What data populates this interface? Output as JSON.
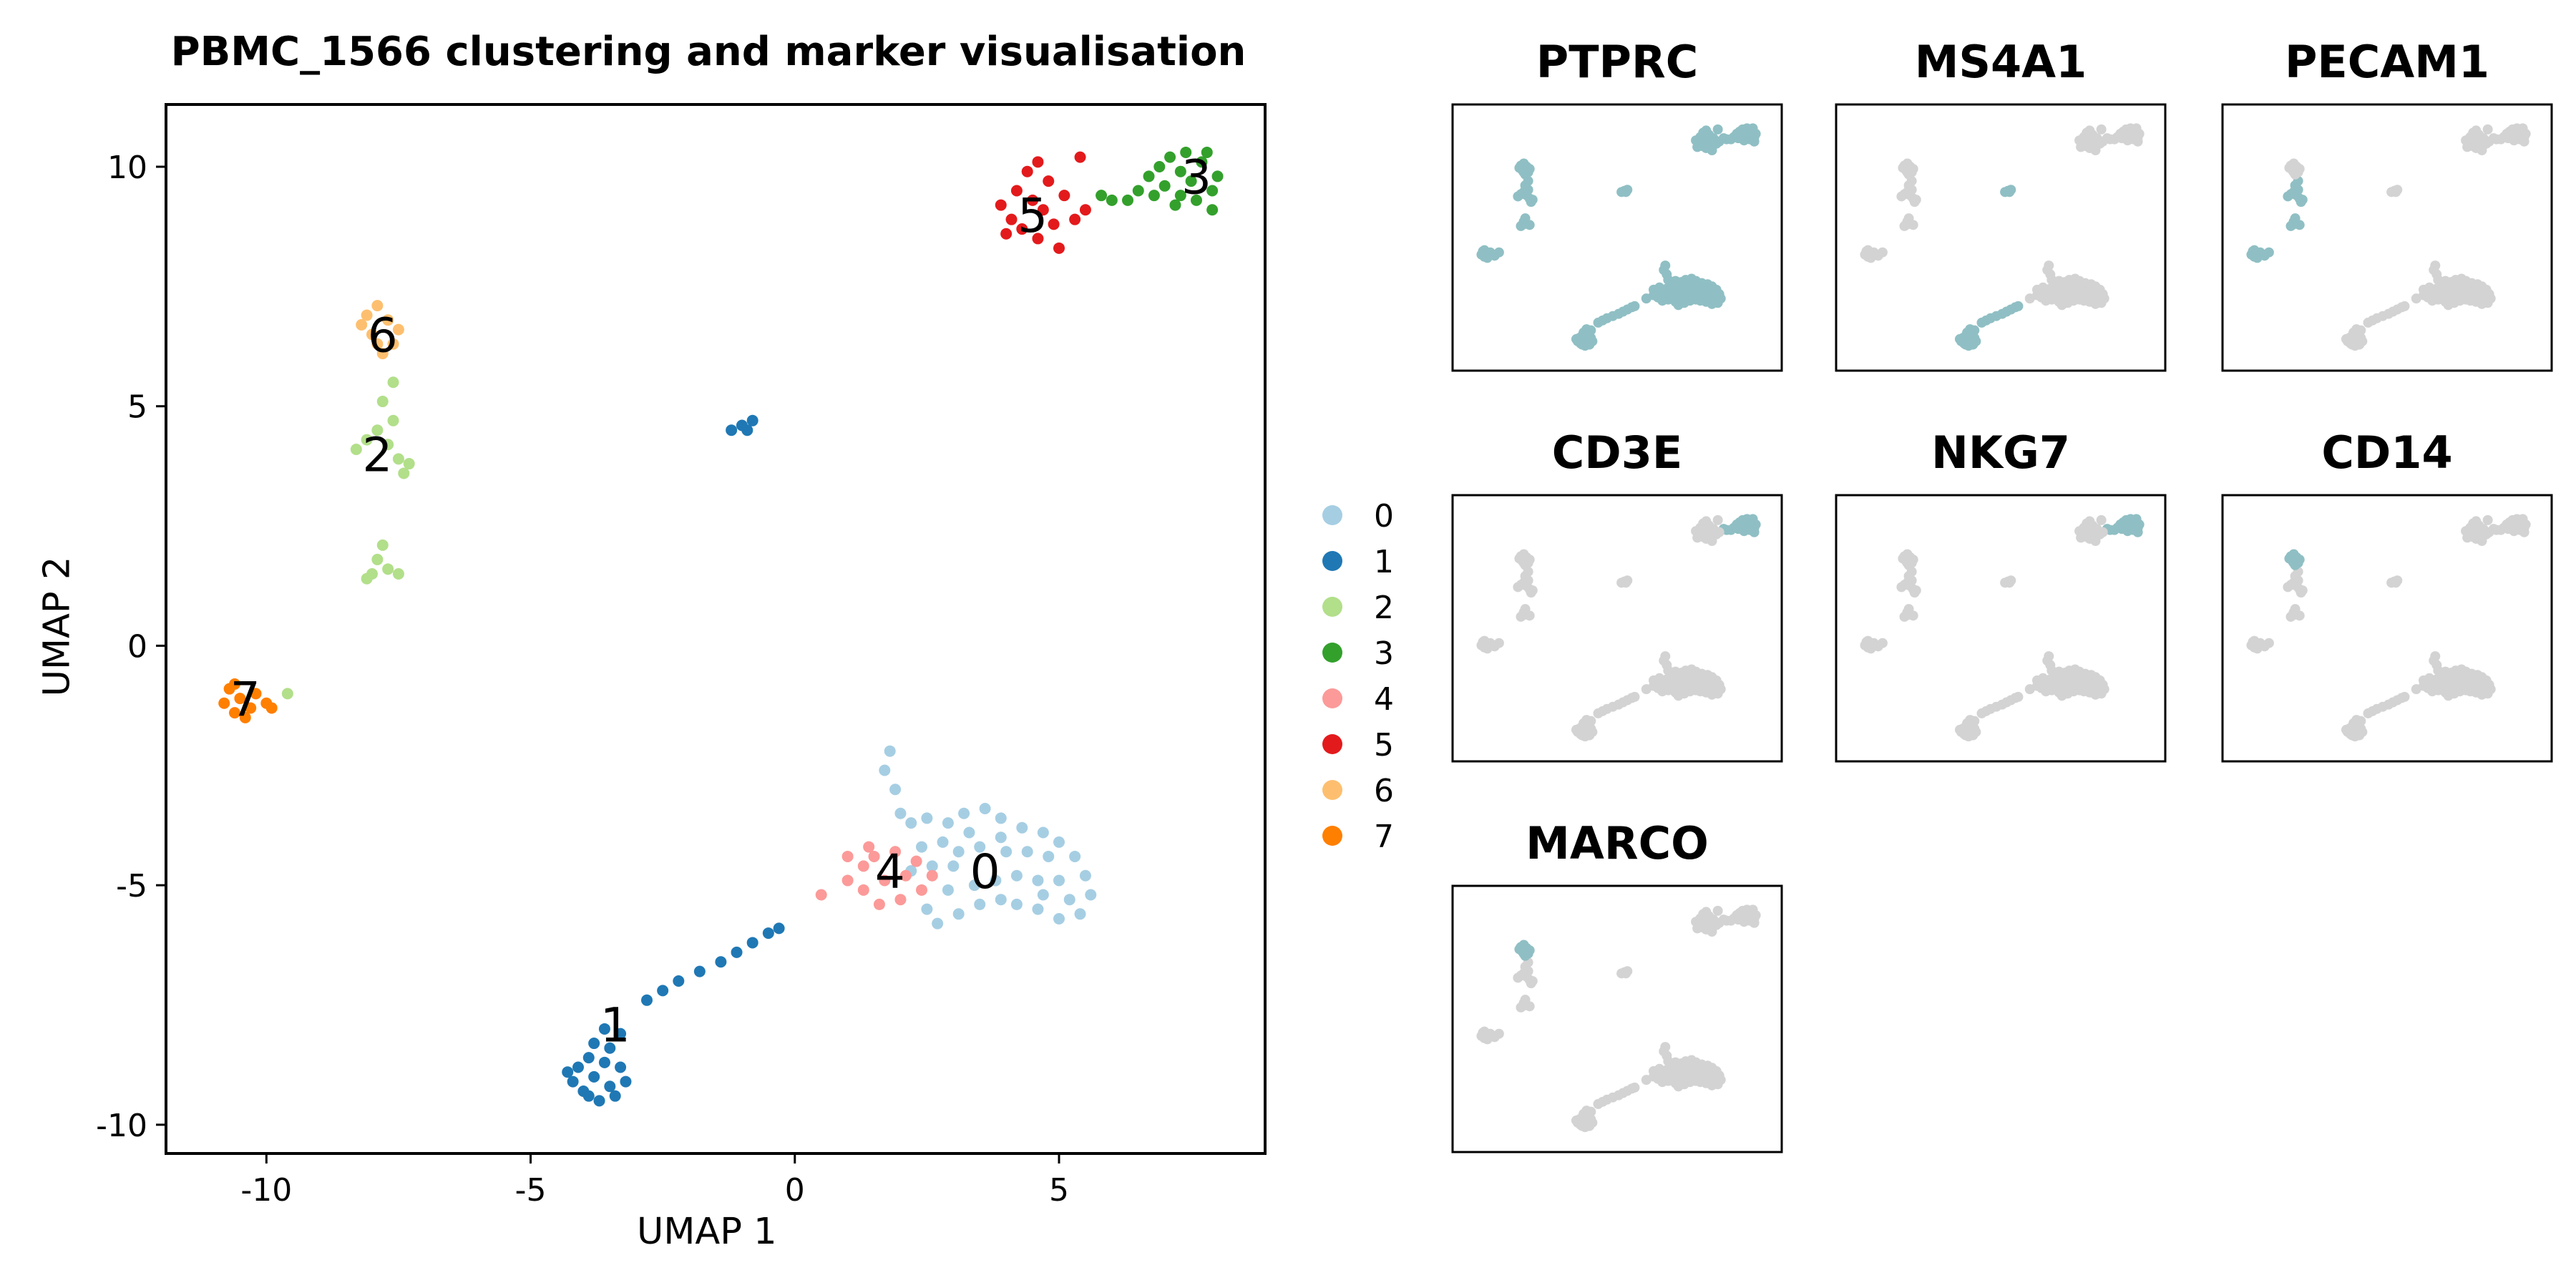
{
  "title": "PBMC_1566 clustering and marker visualisation",
  "chart_data": [
    {
      "type": "scatter",
      "title": "PBMC_1566 clustering and marker visualisation",
      "xlabel": "UMAP 1",
      "ylabel": "UMAP 2",
      "xlim": [
        -11.9,
        8.9
      ],
      "ylim": [
        -10.6,
        11.3
      ],
      "xticks": [
        {
          "v": -10,
          "label": "-10"
        },
        {
          "v": -5,
          "label": "-5"
        },
        {
          "v": 0,
          "label": "0"
        },
        {
          "v": 5,
          "label": "5"
        }
      ],
      "yticks": [
        {
          "v": -10,
          "label": "-10"
        },
        {
          "v": -5,
          "label": "-5"
        },
        {
          "v": 0,
          "label": "0"
        },
        {
          "v": 5,
          "label": "5"
        },
        {
          "v": 10,
          "label": "10"
        }
      ],
      "legend_position": "right",
      "series": [
        {
          "name": "0",
          "color": "#a6cee3",
          "label_at": [
            3.6,
            -4.7
          ],
          "points": [
            [
              1.8,
              -2.2
            ],
            [
              1.7,
              -2.6
            ],
            [
              1.9,
              -3.0
            ],
            [
              2.0,
              -3.5
            ],
            [
              2.2,
              -3.7
            ],
            [
              2.5,
              -3.6
            ],
            [
              2.9,
              -3.7
            ],
            [
              3.2,
              -3.5
            ],
            [
              3.6,
              -3.4
            ],
            [
              3.9,
              -3.6
            ],
            [
              4.3,
              -3.8
            ],
            [
              4.7,
              -3.9
            ],
            [
              5.0,
              -4.1
            ],
            [
              5.3,
              -4.4
            ],
            [
              5.5,
              -4.8
            ],
            [
              5.6,
              -5.2
            ],
            [
              5.4,
              -5.6
            ],
            [
              5.0,
              -5.7
            ],
            [
              4.6,
              -5.5
            ],
            [
              4.2,
              -5.4
            ],
            [
              3.9,
              -5.3
            ],
            [
              3.5,
              -5.4
            ],
            [
              3.1,
              -5.6
            ],
            [
              2.7,
              -5.8
            ],
            [
              2.5,
              -5.5
            ],
            [
              2.9,
              -5.1
            ],
            [
              3.4,
              -5.0
            ],
            [
              3.8,
              -4.9
            ],
            [
              4.2,
              -4.8
            ],
            [
              4.6,
              -4.9
            ],
            [
              5.0,
              -4.9
            ],
            [
              4.8,
              -4.4
            ],
            [
              4.4,
              -4.3
            ],
            [
              4.0,
              -4.3
            ],
            [
              3.5,
              -4.2
            ],
            [
              3.1,
              -4.3
            ],
            [
              2.8,
              -4.1
            ],
            [
              2.4,
              -4.2
            ],
            [
              2.2,
              -4.7
            ],
            [
              2.6,
              -4.6
            ],
            [
              3.0,
              -4.6
            ],
            [
              3.9,
              -4.0
            ],
            [
              4.7,
              -5.2
            ],
            [
              5.2,
              -5.3
            ],
            [
              3.3,
              -3.9
            ]
          ]
        },
        {
          "name": "1",
          "color": "#1f78b4",
          "label_at": [
            -3.4,
            -7.9
          ],
          "points": [
            [
              -3.9,
              -8.6
            ],
            [
              -4.1,
              -8.8
            ],
            [
              -4.2,
              -9.1
            ],
            [
              -4.0,
              -9.3
            ],
            [
              -3.7,
              -9.5
            ],
            [
              -3.4,
              -9.4
            ],
            [
              -3.2,
              -9.1
            ],
            [
              -3.3,
              -8.8
            ],
            [
              -3.6,
              -8.7
            ],
            [
              -3.8,
              -9.0
            ],
            [
              -3.5,
              -9.2
            ],
            [
              -3.9,
              -9.4
            ],
            [
              -4.3,
              -8.9
            ],
            [
              -3.5,
              -8.4
            ],
            [
              -3.3,
              -8.1
            ],
            [
              -3.6,
              -8.0
            ],
            [
              -3.8,
              -8.3
            ],
            [
              -2.8,
              -7.4
            ],
            [
              -2.5,
              -7.2
            ],
            [
              -2.2,
              -7.0
            ],
            [
              -1.8,
              -6.8
            ],
            [
              -1.4,
              -6.6
            ],
            [
              -1.1,
              -6.4
            ],
            [
              -0.8,
              -6.2
            ],
            [
              -0.5,
              -6.0
            ],
            [
              -0.3,
              -5.9
            ],
            [
              -1.2,
              4.5
            ],
            [
              -1.0,
              4.6
            ],
            [
              -0.8,
              4.7
            ],
            [
              -0.9,
              4.5
            ]
          ]
        },
        {
          "name": "2",
          "color": "#b2df8a",
          "label_at": [
            -7.9,
            4.0
          ],
          "points": [
            [
              -8.3,
              4.1
            ],
            [
              -8.1,
              4.3
            ],
            [
              -7.9,
              4.5
            ],
            [
              -7.7,
              4.2
            ],
            [
              -7.6,
              4.7
            ],
            [
              -7.5,
              3.9
            ],
            [
              -7.4,
              3.6
            ],
            [
              -7.8,
              5.1
            ],
            [
              -7.6,
              5.5
            ],
            [
              -8.0,
              1.5
            ],
            [
              -7.9,
              1.8
            ],
            [
              -7.8,
              2.1
            ],
            [
              -7.7,
              1.6
            ],
            [
              -8.1,
              1.4
            ],
            [
              -7.5,
              1.5
            ],
            [
              -9.6,
              -1.0
            ],
            [
              -7.3,
              3.8
            ]
          ]
        },
        {
          "name": "3",
          "color": "#33a02c",
          "label_at": [
            7.6,
            9.8
          ],
          "points": [
            [
              6.7,
              9.8
            ],
            [
              6.9,
              10.0
            ],
            [
              7.1,
              10.2
            ],
            [
              7.3,
              9.9
            ],
            [
              7.5,
              9.7
            ],
            [
              7.7,
              10.1
            ],
            [
              7.9,
              9.5
            ],
            [
              7.6,
              9.3
            ],
            [
              7.3,
              9.4
            ],
            [
              7.0,
              9.6
            ],
            [
              6.8,
              9.4
            ],
            [
              6.5,
              9.5
            ],
            [
              6.3,
              9.3
            ],
            [
              6.0,
              9.3
            ],
            [
              5.8,
              9.4
            ],
            [
              7.8,
              10.3
            ],
            [
              8.0,
              9.8
            ],
            [
              7.2,
              9.2
            ],
            [
              7.4,
              10.3
            ],
            [
              7.9,
              9.1
            ]
          ]
        },
        {
          "name": "4",
          "color": "#fb9a99",
          "label_at": [
            1.8,
            -4.7
          ],
          "points": [
            [
              0.5,
              -5.2
            ],
            [
              1.0,
              -4.9
            ],
            [
              1.3,
              -4.6
            ],
            [
              1.5,
              -4.4
            ],
            [
              1.9,
              -4.3
            ],
            [
              2.3,
              -4.5
            ],
            [
              2.6,
              -4.8
            ],
            [
              2.4,
              -5.1
            ],
            [
              2.0,
              -5.3
            ],
            [
              1.6,
              -5.4
            ],
            [
              1.3,
              -5.1
            ],
            [
              1.7,
              -4.9
            ],
            [
              2.1,
              -4.8
            ],
            [
              1.4,
              -4.2
            ],
            [
              1.0,
              -4.4
            ]
          ]
        },
        {
          "name": "5",
          "color": "#e31a1c",
          "label_at": [
            4.5,
            9.0
          ],
          "points": [
            [
              3.9,
              9.2
            ],
            [
              4.1,
              8.9
            ],
            [
              4.3,
              8.7
            ],
            [
              4.5,
              9.3
            ],
            [
              4.7,
              9.1
            ],
            [
              4.9,
              8.8
            ],
            [
              5.1,
              9.4
            ],
            [
              5.3,
              8.9
            ],
            [
              5.5,
              9.1
            ],
            [
              4.2,
              9.5
            ],
            [
              4.0,
              8.6
            ],
            [
              4.6,
              8.5
            ],
            [
              5.0,
              8.3
            ],
            [
              4.8,
              9.7
            ],
            [
              4.4,
              9.9
            ],
            [
              4.6,
              10.1
            ],
            [
              5.4,
              10.2
            ]
          ]
        },
        {
          "name": "6",
          "color": "#fdbf6f",
          "label_at": [
            -7.8,
            6.5
          ],
          "points": [
            [
              -8.1,
              6.9
            ],
            [
              -7.9,
              7.1
            ],
            [
              -7.7,
              6.8
            ],
            [
              -8.0,
              6.5
            ],
            [
              -7.6,
              6.3
            ],
            [
              -7.8,
              6.1
            ],
            [
              -7.5,
              6.6
            ],
            [
              -8.2,
              6.7
            ],
            [
              -7.9,
              6.3
            ]
          ]
        },
        {
          "name": "7",
          "color": "#ff7f00",
          "label_at": [
            -10.4,
            -1.1
          ],
          "points": [
            [
              -10.7,
              -0.9
            ],
            [
              -10.5,
              -1.1
            ],
            [
              -10.3,
              -1.3
            ],
            [
              -10.6,
              -1.4
            ],
            [
              -10.2,
              -1.0
            ],
            [
              -10.0,
              -1.2
            ],
            [
              -10.8,
              -1.2
            ],
            [
              -10.4,
              -1.5
            ],
            [
              -9.9,
              -1.3
            ],
            [
              -10.6,
              -0.8
            ]
          ]
        }
      ]
    },
    {
      "type": "scatter",
      "panels": [
        {
          "title": "PTPRC",
          "expressed": [
            "all"
          ]
        },
        {
          "title": "MS4A1",
          "expressed": [
            "1"
          ]
        },
        {
          "title": "PECAM1",
          "expressed": [
            "7",
            "2"
          ]
        },
        {
          "title": "CD3E",
          "expressed": [
            "3"
          ]
        },
        {
          "title": "NKG7",
          "expressed": [
            "3"
          ]
        },
        {
          "title": "CD14",
          "expressed": [
            "6"
          ]
        },
        {
          "title": "MARCO",
          "expressed": [
            "6"
          ]
        }
      ],
      "colors": {
        "background": "#d3d3d3",
        "expressed": "#8fbfc4",
        "highlight": "#5a9fa8"
      }
    }
  ],
  "legend": [
    "0",
    "1",
    "2",
    "3",
    "4",
    "5",
    "6",
    "7"
  ]
}
